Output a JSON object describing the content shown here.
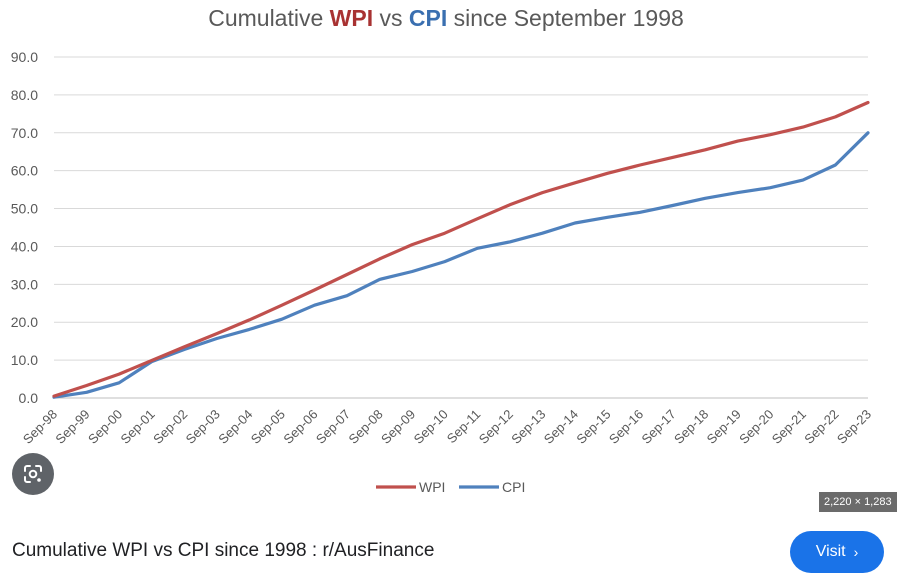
{
  "chart_data": {
    "type": "line",
    "title_parts": [
      {
        "text": "Cumulative ",
        "color": "#595959",
        "bold": false
      },
      {
        "text": "WPI",
        "color": "#a83232",
        "bold": true
      },
      {
        "text": " vs ",
        "color": "#595959",
        "bold": false
      },
      {
        "text": "CPI",
        "color": "#3a6fb0",
        "bold": true
      },
      {
        "text": " since September 1998",
        "color": "#595959",
        "bold": false
      }
    ],
    "categories": [
      "Sep-98",
      "Sep-99",
      "Sep-00",
      "Sep-01",
      "Sep-02",
      "Sep-03",
      "Sep-04",
      "Sep-05",
      "Sep-06",
      "Sep-07",
      "Sep-08",
      "Sep-09",
      "Sep-10",
      "Sep-11",
      "Sep-12",
      "Sep-13",
      "Sep-14",
      "Sep-15",
      "Sep-16",
      "Sep-17",
      "Sep-18",
      "Sep-19",
      "Sep-20",
      "Sep-21",
      "Sep-22",
      "Sep-23"
    ],
    "y_ticks": [
      "0.0",
      "10.0",
      "20.0",
      "30.0",
      "40.0",
      "50.0",
      "60.0",
      "70.0",
      "80.0",
      "90.0"
    ],
    "ylim": [
      0,
      90
    ],
    "grid": true,
    "legend_position": "bottom",
    "series": [
      {
        "name": "WPI",
        "color": "#c0504d",
        "values": [
          0.5,
          3.3,
          6.3,
          9.9,
          13.5,
          17.0,
          20.6,
          24.5,
          28.5,
          32.6,
          36.7,
          40.5,
          43.5,
          47.3,
          51.0,
          54.2,
          56.8,
          59.3,
          61.5,
          63.5,
          65.5,
          67.8,
          69.5,
          71.5,
          74.2,
          78.0
        ]
      },
      {
        "name": "CPI",
        "color": "#4f81bd",
        "values": [
          0.2,
          1.5,
          4.0,
          9.6,
          12.8,
          15.7,
          18.1,
          20.8,
          24.5,
          27.0,
          31.3,
          33.4,
          36.0,
          39.5,
          41.2,
          43.5,
          46.2,
          47.7,
          49.0,
          50.8,
          52.7,
          54.2,
          55.5,
          57.5,
          61.5,
          70.0
        ]
      }
    ]
  },
  "overlay": {
    "lens_icon": "google-lens-icon",
    "image_dimensions": "2,220 × 1,283"
  },
  "caption": {
    "text": "Cumulative WPI vs CPI since 1998 : r/AusFinance"
  },
  "visit_button": {
    "label": "Visit",
    "chevron": "›"
  }
}
